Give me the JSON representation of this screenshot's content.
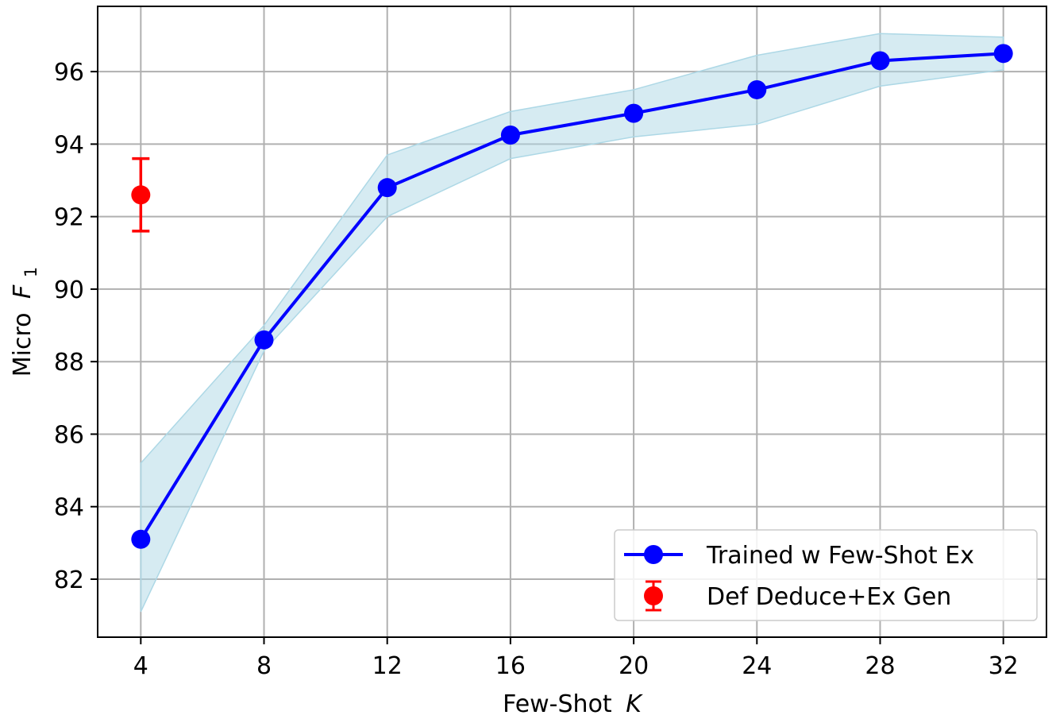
{
  "chart_data": {
    "type": "line",
    "title": "",
    "xlabel": "Few-Shot",
    "xlabel_italic": "K",
    "ylabel": "Micro",
    "ylabel_italic": "F",
    "ylabel_subscript": "1",
    "x_ticks": [
      4,
      8,
      12,
      16,
      20,
      24,
      28,
      32
    ],
    "y_ticks": [
      82,
      84,
      86,
      88,
      90,
      92,
      94,
      96
    ],
    "xlim": [
      2.6,
      33.4
    ],
    "ylim": [
      80.4,
      97.8
    ],
    "grid": true,
    "legend_position": "bottom-right",
    "series": [
      {
        "name": "Trained w Few-Shot Ex",
        "color": "#0000ff",
        "band_color": "#add8e6",
        "x": [
          4,
          8,
          12,
          16,
          20,
          24,
          28,
          32
        ],
        "y": [
          83.1,
          88.6,
          92.8,
          94.25,
          94.85,
          95.5,
          96.3,
          96.5
        ],
        "band_low": [
          81.1,
          88.3,
          92.0,
          93.6,
          94.2,
          94.55,
          95.6,
          96.05
        ],
        "band_high": [
          85.2,
          89.0,
          93.7,
          94.9,
          95.5,
          96.45,
          97.05,
          96.95
        ]
      },
      {
        "name": "Def Deduce+Ex Gen",
        "color": "#ff0000",
        "type": "errorbar",
        "x": [
          4
        ],
        "y": [
          92.6
        ],
        "err": [
          1.0
        ]
      }
    ]
  }
}
